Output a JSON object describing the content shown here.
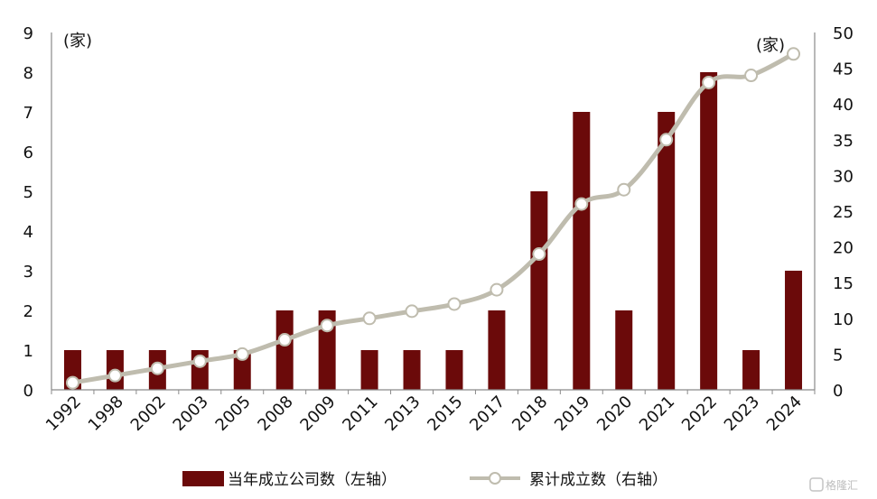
{
  "chart_data": {
    "type": "bar+line",
    "categories": [
      "1992",
      "1998",
      "2002",
      "2003",
      "2005",
      "2008",
      "2009",
      "2011",
      "2013",
      "2015",
      "2017",
      "2018",
      "2019",
      "2020",
      "2021",
      "2022",
      "2023",
      "2024"
    ],
    "series": [
      {
        "name": "当年成立公司数（左轴）",
        "type": "bar",
        "axis": "left",
        "color": "#6b0a0a",
        "values": [
          1,
          1,
          1,
          1,
          1,
          2,
          2,
          1,
          1,
          1,
          2,
          5,
          7,
          2,
          7,
          8,
          1,
          3
        ]
      },
      {
        "name": "累计成立数（右轴）",
        "type": "line",
        "axis": "right",
        "color": "#bfbcae",
        "values": [
          1,
          2,
          3,
          4,
          5,
          7,
          9,
          10,
          11,
          12,
          14,
          19,
          26,
          28,
          35,
          43,
          44,
          47
        ]
      }
    ],
    "left_axis": {
      "min": 0,
      "max": 9,
      "step": 1,
      "unit": "(家)"
    },
    "right_axis": {
      "min": 0,
      "max": 50,
      "step": 5,
      "unit": "(家)"
    },
    "grid": false,
    "legend_position": "bottom"
  },
  "watermark": "格隆汇"
}
